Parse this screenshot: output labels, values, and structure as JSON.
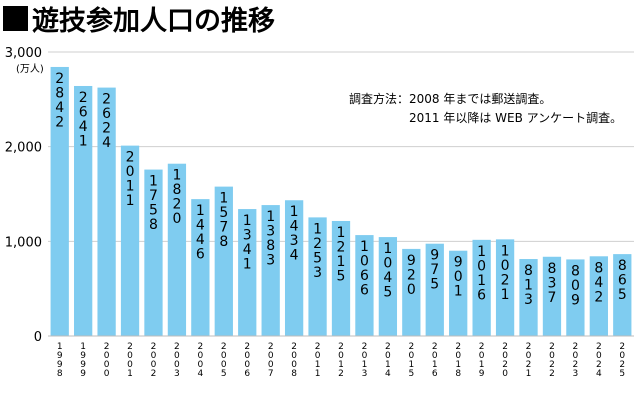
{
  "title": "遊技参加人口の推移",
  "note": {
    "line1": "調査方法：2008 年までは郵送調査。",
    "line2": "2011 年以降は WEB アンケート調査。"
  },
  "chart_data": {
    "type": "bar",
    "title": "遊技参加人口の推移",
    "ylabel": "(万人)",
    "xlabel": "",
    "ylim": [
      0,
      3000
    ],
    "yticks": [
      0,
      1000,
      2000,
      3000
    ],
    "ytick_labels": [
      "0",
      "1,000",
      "2,000",
      "3,000"
    ],
    "grid": "horizontal",
    "bar_color": "#7fccf0",
    "categories": [
      "1998",
      "1999",
      "2000",
      "2001",
      "2002",
      "2003",
      "2004",
      "2005",
      "2006",
      "2007",
      "2008",
      "2011",
      "2012",
      "2013",
      "2014",
      "2015",
      "2016",
      "2018",
      "2019",
      "2020",
      "2021",
      "2022",
      "2023",
      "2024",
      "2025"
    ],
    "values": [
      2842,
      2641,
      2624,
      2011,
      1758,
      1820,
      1446,
      1578,
      1341,
      1383,
      1434,
      1253,
      1215,
      1066,
      1045,
      920,
      975,
      901,
      1016,
      1021,
      813,
      837,
      809,
      842,
      865
    ]
  }
}
